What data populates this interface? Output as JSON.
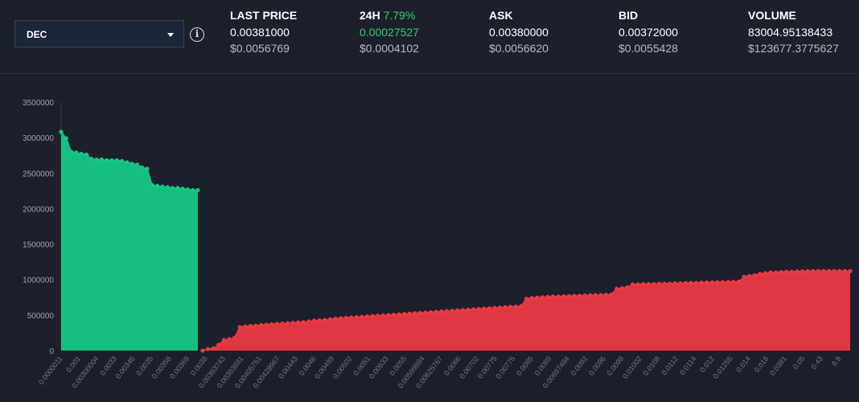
{
  "selector": {
    "value": "DEC"
  },
  "stats": {
    "last_price": {
      "label": "LAST PRICE",
      "value": "0.00381000",
      "usd": "$0.0056769"
    },
    "change_24h": {
      "label": "24H",
      "percent": "7.79%",
      "value": "0.00027527",
      "usd": "$0.0004102"
    },
    "ask": {
      "label": "ASK",
      "value": "0.00380000",
      "usd": "$0.0056620"
    },
    "bid": {
      "label": "BID",
      "value": "0.00372000",
      "usd": "$0.0055428"
    },
    "volume": {
      "label": "VOLUME",
      "value": "83004.95138433",
      "usd": "$123677.3775627"
    }
  },
  "colors": {
    "bid": "#16c784",
    "ask": "#ea3943",
    "accent_green": "#2fcf6e",
    "background": "#1c202b"
  },
  "chart_data": {
    "type": "area",
    "title": "",
    "xlabel": "",
    "ylabel": "",
    "ylim": [
      0,
      3500000
    ],
    "y_ticks": [
      "0",
      "500000",
      "1000000",
      "1500000",
      "2000000",
      "2500000",
      "3000000",
      "3500000"
    ],
    "x_tick_labels": [
      "0.0000011",
      "0.001",
      "0.00300004",
      "0.0033",
      "0.00346",
      "0.0035",
      "0.00358",
      "0.00369",
      "0.0038",
      "0.00383743",
      "0.00383881",
      "0.00405751",
      "0.00429967",
      "0.00443",
      "0.0046",
      "0.00499",
      "0.00502",
      "0.0051",
      "0.00533",
      "0.0055",
      "0.00599884",
      "0.00625767",
      "0.0066",
      "0.00702",
      "0.00775",
      "0.00775",
      "0.0085",
      "0.0089",
      "0.00897484",
      "0.0092",
      "0.0096",
      "0.0099",
      "0.01002",
      "0.0108",
      "0.0112",
      "0.0114",
      "0.012",
      "0.01255",
      "0.014",
      "0.018",
      "0.0381",
      "0.05",
      "0.43",
      "8.9"
    ],
    "grid": false,
    "legend": "none",
    "series": [
      {
        "side": "bid",
        "color": "#16c784",
        "values": [
          3080000,
          2990000,
          2800000,
          2790000,
          2770000,
          2760000,
          2700000,
          2690000,
          2690000,
          2680000,
          2680000,
          2680000,
          2670000,
          2650000,
          2630000,
          2620000,
          2580000,
          2560000,
          2330000,
          2320000,
          2310000,
          2300000,
          2290000,
          2290000,
          2280000,
          2270000,
          2260000,
          2260000
        ]
      },
      {
        "side": "ask",
        "color": "#ea3943",
        "values": [
          0,
          20000,
          30000,
          80000,
          150000,
          160000,
          180000,
          330000,
          340000,
          345000,
          350000,
          360000,
          365000,
          370000,
          375000,
          380000,
          385000,
          390000,
          395000,
          400000,
          410000,
          420000,
          425000,
          430000,
          440000,
          450000,
          455000,
          460000,
          465000,
          470000,
          475000,
          480000,
          485000,
          490000,
          495000,
          500000,
          505000,
          510000,
          515000,
          520000,
          525000,
          530000,
          535000,
          540000,
          545000,
          550000,
          555000,
          560000,
          565000,
          570000,
          575000,
          580000,
          585000,
          590000,
          595000,
          600000,
          605000,
          610000,
          615000,
          620000,
          625000,
          730000,
          740000,
          745000,
          750000,
          755000,
          760000,
          762000,
          765000,
          767000,
          770000,
          772000,
          775000,
          778000,
          780000,
          782000,
          785000,
          790000,
          870000,
          880000,
          890000,
          930000,
          932000,
          934000,
          936000,
          938000,
          940000,
          942000,
          944000,
          946000,
          948000,
          950000,
          952000,
          954000,
          956000,
          958000,
          960000,
          962000,
          964000,
          966000,
          968000,
          970000,
          1040000,
          1050000,
          1060000,
          1080000,
          1090000,
          1100000,
          1100000,
          1105000,
          1110000,
          1110000,
          1115000,
          1115000,
          1118000,
          1120000,
          1120000,
          1120000,
          1120000,
          1120000,
          1120000,
          1120000,
          1120000
        ]
      }
    ]
  }
}
